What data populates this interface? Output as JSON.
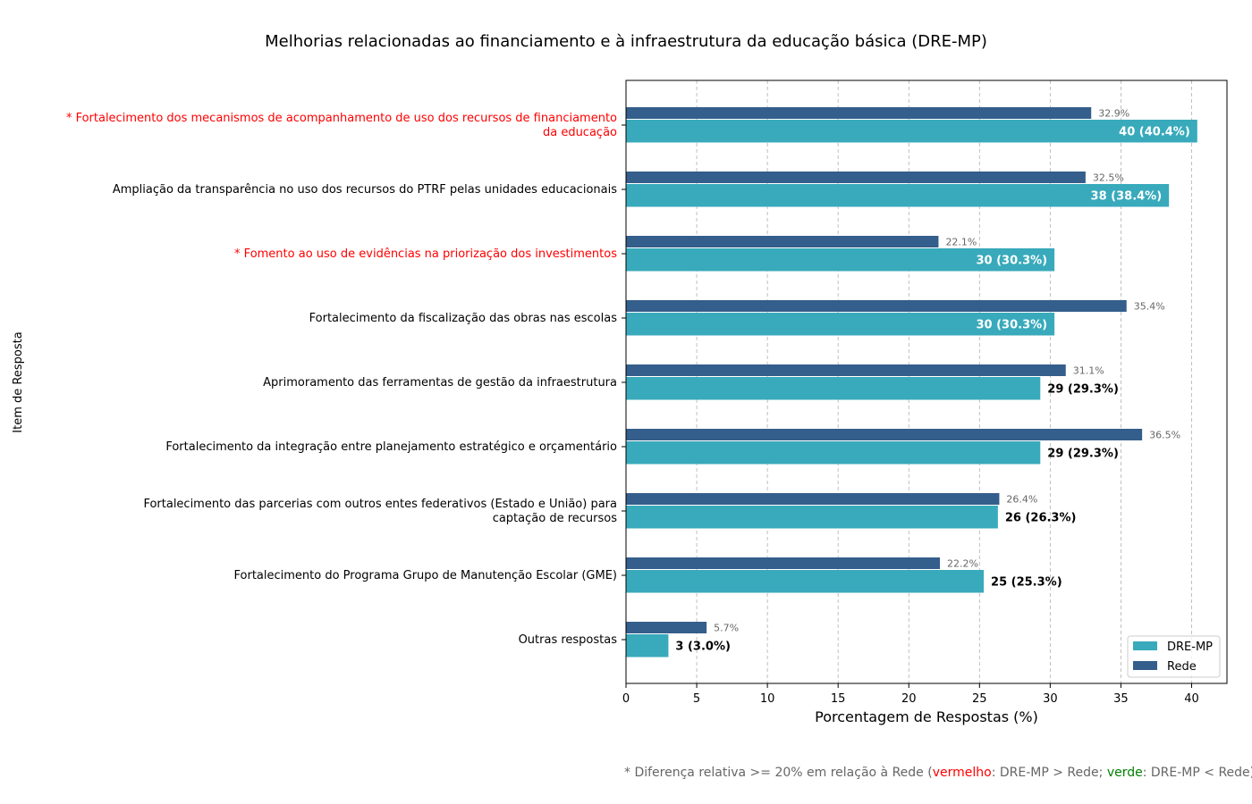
{
  "chart_data": {
    "type": "bar",
    "orientation": "horizontal",
    "title": "Melhorias relacionadas ao financiamento e à infraestrutura da educação básica (DRE-MP)",
    "xlabel": "Porcentagem de Respostas (%)",
    "ylabel": "Item de Resposta",
    "xlim": [
      0,
      42.5
    ],
    "xticks": [
      0,
      5,
      10,
      15,
      20,
      25,
      30,
      35,
      40
    ],
    "grid": "x-dashed",
    "legend_position": "bottom-right",
    "categories": [
      {
        "lines": [
          "* Fortalecimento dos mecanismos de acompanhamento de uso dos recursos de financiamento",
          "da educação"
        ],
        "highlight": "red"
      },
      {
        "lines": [
          "Ampliação da transparência no uso dos recursos do PTRF pelas unidades educacionais"
        ],
        "highlight": ""
      },
      {
        "lines": [
          "* Fomento ao uso de evidências na priorização dos investimentos"
        ],
        "highlight": "red"
      },
      {
        "lines": [
          "Fortalecimento da fiscalização das obras nas escolas"
        ],
        "highlight": ""
      },
      {
        "lines": [
          "Aprimoramento das ferramentas de gestão da infraestrutura"
        ],
        "highlight": ""
      },
      {
        "lines": [
          "Fortalecimento da integração entre planejamento estratégico e orçamentário"
        ],
        "highlight": ""
      },
      {
        "lines": [
          "Fortalecimento das parcerias com outros entes federativos (Estado e União) para",
          "captação de recursos"
        ],
        "highlight": ""
      },
      {
        "lines": [
          "Fortalecimento do Programa Grupo de Manutenção Escolar (GME)"
        ],
        "highlight": ""
      },
      {
        "lines": [
          "Outras respostas"
        ],
        "highlight": ""
      }
    ],
    "series": [
      {
        "name": "DRE-MP",
        "color": "#38aabb",
        "values": [
          40.4,
          38.4,
          30.3,
          30.3,
          29.3,
          29.3,
          26.3,
          25.3,
          3.0
        ],
        "labels": [
          "40 (40.4%)",
          "38 (38.4%)",
          "30 (30.3%)",
          "30 (30.3%)",
          "29 (29.3%)",
          "29 (29.3%)",
          "26 (26.3%)",
          "25 (25.3%)",
          "3 (3.0%)"
        ]
      },
      {
        "name": "Rede",
        "color": "#345e8b",
        "values": [
          32.9,
          32.5,
          22.1,
          35.4,
          31.1,
          36.5,
          26.4,
          22.2,
          5.7
        ],
        "labels": [
          "32.9%",
          "32.5%",
          "22.1%",
          "35.4%",
          "31.1%",
          "36.5%",
          "26.4%",
          "22.2%",
          "5.7%"
        ]
      }
    ]
  },
  "footnote": {
    "prefix": "* Diferença relativa >= 20% em relação à Rede (",
    "red_word": "vermelho",
    "middle": ": DRE-MP > Rede; ",
    "green_word": "verde",
    "suffix": ": DRE-MP < Rede)"
  }
}
